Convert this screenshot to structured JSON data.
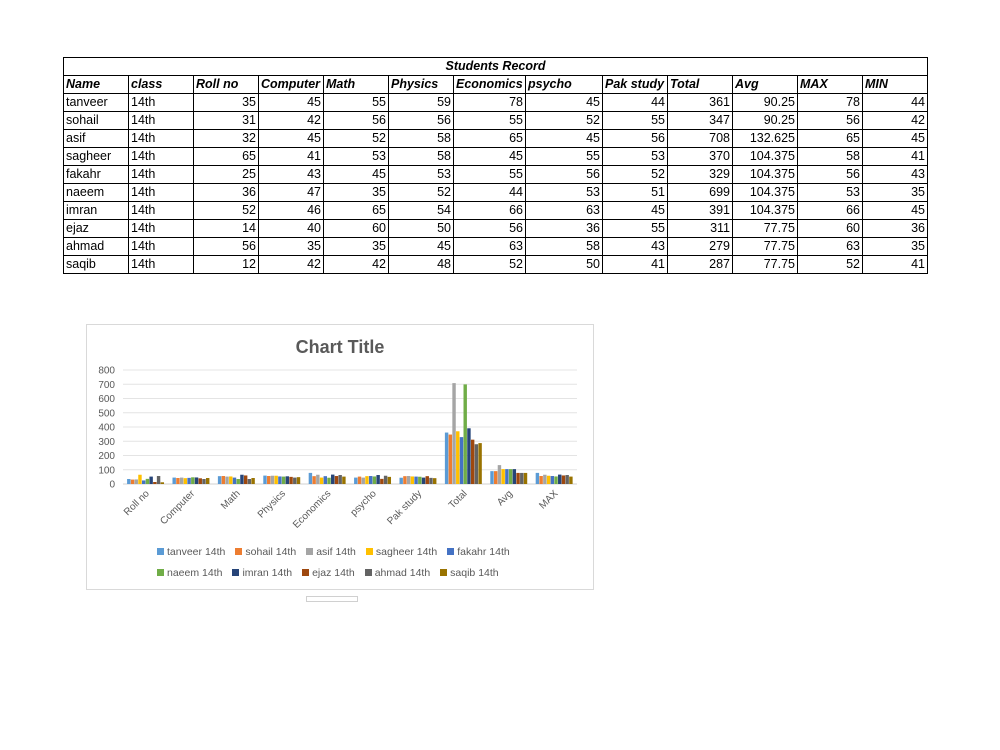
{
  "table": {
    "title": "Students Record",
    "headers": [
      "Name",
      "class",
      "Roll no",
      "Computer",
      "Math",
      "Physics",
      "Economics",
      "psycho",
      "Pak study",
      "Total",
      "Avg",
      "MAX",
      "MIN"
    ],
    "rows": [
      [
        "tanveer",
        "14th",
        "35",
        "45",
        "55",
        "59",
        "78",
        "45",
        "44",
        "361",
        "90.25",
        "78",
        "44"
      ],
      [
        "sohail",
        "14th",
        "31",
        "42",
        "56",
        "56",
        "55",
        "52",
        "55",
        "347",
        "90.25",
        "56",
        "42"
      ],
      [
        "asif",
        "14th",
        "32",
        "45",
        "52",
        "58",
        "65",
        "45",
        "56",
        "708",
        "132.625",
        "65",
        "45"
      ],
      [
        "sagheer",
        "14th",
        "65",
        "41",
        "53",
        "58",
        "45",
        "55",
        "53",
        "370",
        "104.375",
        "58",
        "41"
      ],
      [
        "fakahr",
        "14th",
        "25",
        "43",
        "45",
        "53",
        "55",
        "56",
        "52",
        "329",
        "104.375",
        "56",
        "43"
      ],
      [
        "naeem",
        "14th",
        "36",
        "47",
        "35",
        "52",
        "44",
        "53",
        "51",
        "699",
        "104.375",
        "53",
        "35"
      ],
      [
        "imran",
        "14th",
        "52",
        "46",
        "65",
        "54",
        "66",
        "63",
        "45",
        "391",
        "104.375",
        "66",
        "45"
      ],
      [
        "ejaz",
        "14th",
        "14",
        "40",
        "60",
        "50",
        "56",
        "36",
        "55",
        "311",
        "77.75",
        "60",
        "36"
      ],
      [
        "ahmad",
        "14th",
        "56",
        "35",
        "35",
        "45",
        "63",
        "58",
        "43",
        "279",
        "77.75",
        "63",
        "35"
      ],
      [
        "saqib",
        "14th",
        "12",
        "42",
        "42",
        "48",
        "52",
        "50",
        "41",
        "287",
        "77.75",
        "52",
        "41"
      ]
    ]
  },
  "chart_data": {
    "type": "bar",
    "title": "Chart Title",
    "categories": [
      "Roll no",
      "Computer",
      "Math",
      "Physics",
      "Economics",
      "psycho",
      "Pak study",
      "Total",
      "Avg",
      "MAX"
    ],
    "ylim": [
      0,
      800
    ],
    "yticks": [
      0,
      100,
      200,
      300,
      400,
      500,
      600,
      700,
      800
    ],
    "grid": true,
    "legend": "bottom",
    "series": [
      {
        "name": "tanveer 14th",
        "color": "#5b9bd5",
        "values": [
          35,
          45,
          55,
          59,
          78,
          45,
          44,
          361,
          90.25,
          78
        ]
      },
      {
        "name": "sohail 14th",
        "color": "#ed7d31",
        "values": [
          31,
          42,
          56,
          56,
          55,
          52,
          55,
          347,
          90.25,
          56
        ]
      },
      {
        "name": "asif 14th",
        "color": "#a5a5a5",
        "values": [
          32,
          45,
          52,
          58,
          65,
          45,
          56,
          708,
          132.625,
          65
        ]
      },
      {
        "name": "sagheer 14th",
        "color": "#ffc000",
        "values": [
          65,
          41,
          53,
          58,
          45,
          55,
          53,
          370,
          104.375,
          58
        ]
      },
      {
        "name": "fakahr 14th",
        "color": "#4472c4",
        "values": [
          25,
          43,
          45,
          53,
          55,
          56,
          52,
          329,
          104.375,
          56
        ]
      },
      {
        "name": "naeem 14th",
        "color": "#70ad47",
        "values": [
          36,
          47,
          35,
          52,
          44,
          53,
          51,
          699,
          104.375,
          53
        ]
      },
      {
        "name": "imran 14th",
        "color": "#264478",
        "values": [
          52,
          46,
          65,
          54,
          66,
          63,
          45,
          391,
          104.375,
          66
        ]
      },
      {
        "name": "ejaz 14th",
        "color": "#9e480e",
        "values": [
          14,
          40,
          60,
          50,
          56,
          36,
          55,
          311,
          77.75,
          60
        ]
      },
      {
        "name": "ahmad 14th",
        "color": "#636363",
        "values": [
          56,
          35,
          35,
          45,
          63,
          58,
          43,
          279,
          77.75,
          63
        ]
      },
      {
        "name": "saqib 14th",
        "color": "#997300",
        "values": [
          12,
          42,
          42,
          48,
          52,
          50,
          41,
          287,
          77.75,
          52
        ]
      }
    ]
  }
}
